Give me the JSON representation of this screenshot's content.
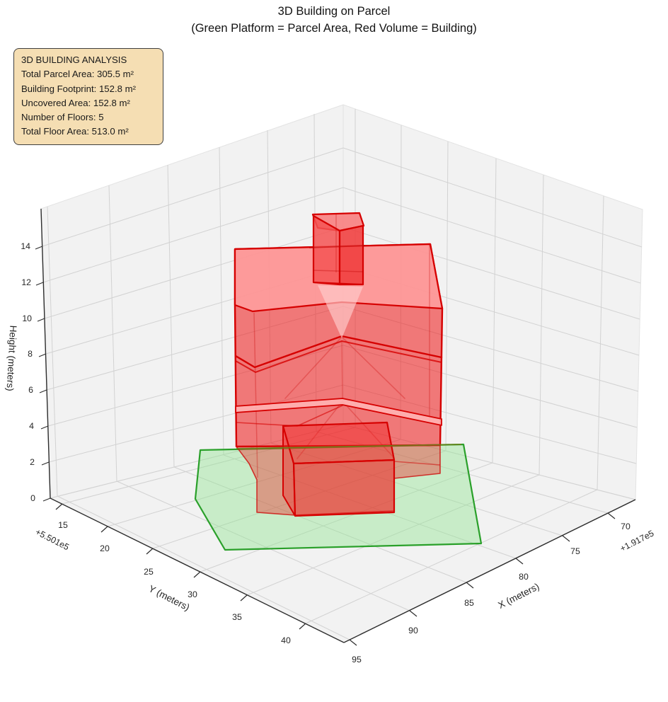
{
  "title": {
    "line1": "3D Building on Parcel",
    "line2": "(Green Platform = Parcel Area, Red Volume = Building)"
  },
  "info_box": {
    "lines": [
      "3D BUILDING ANALYSIS",
      "Total Parcel Area: 305.5 m²",
      "Building Footprint: 152.8 m²",
      "Uncovered Area: 152.8 m²",
      "Number of Floors: 5",
      "Total Floor Area: 513.0 m²"
    ],
    "background": "#f5deb3",
    "border_color": "#3f3f3f"
  },
  "chart_data": {
    "type": "3d-extrusion-plot",
    "title": "3D Building on Parcel",
    "subtitle": "(Green Platform = Parcel Area, Red Volume = Building)",
    "axes": {
      "x": {
        "label": "X (meters)",
        "ticks": [
          "95",
          "90",
          "85",
          "80",
          "75",
          "70"
        ],
        "offset_text": "+1.917e5",
        "range_note": "ticks run 95 (front) to 70 (back right)"
      },
      "y": {
        "label": "Y (meters)",
        "ticks": [
          "15",
          "20",
          "25",
          "30",
          "35",
          "40"
        ],
        "offset_text": "+5.501e5",
        "range_note": "ticks run 15 (back left) to 40 (front)"
      },
      "z": {
        "label": "Height (meters)",
        "ticks": [
          "0",
          "2",
          "4",
          "6",
          "8",
          "10",
          "12",
          "14"
        ],
        "range": [
          0,
          16
        ]
      }
    },
    "grid": true,
    "legend": "none",
    "annotation": {
      "heading": "3D BUILDING ANALYSIS",
      "total_parcel_area_m2": 305.5,
      "building_footprint_m2": 152.8,
      "uncovered_area_m2": 152.8,
      "number_of_floors": 5,
      "total_floor_area_m2": 513.0
    },
    "parcel": {
      "description": "green semi-transparent platform polygon at z=0 (parcel area)",
      "area_m2": 305.5,
      "vertices_xy_estimated": [
        [
          82.0,
          17.5
        ],
        [
          87.5,
          20.5
        ],
        [
          92.0,
          29.0
        ],
        [
          79.5,
          40.0
        ],
        [
          69.5,
          25.5
        ]
      ],
      "fill_color": "#90ee90",
      "edge_color": "#1e9e1e"
    },
    "building": {
      "description": "red semi-transparent extruded volume with 5 stacked floors, ground-level front annex and small rooftop penthouse box",
      "footprint_area_m2": 152.8,
      "floors": 5,
      "floor_height_m_estimated": 2.7,
      "main_height_m_estimated": 13.5,
      "penthouse_top_m_estimated": 15.5,
      "fill_color": "#ff0000",
      "edge_color": "#d60000"
    },
    "colors": {
      "pane": "#f2f2f2",
      "grid_line": "#d2d2d2",
      "axis_line": "#2d2d2d",
      "tick_label": "#262626"
    }
  }
}
